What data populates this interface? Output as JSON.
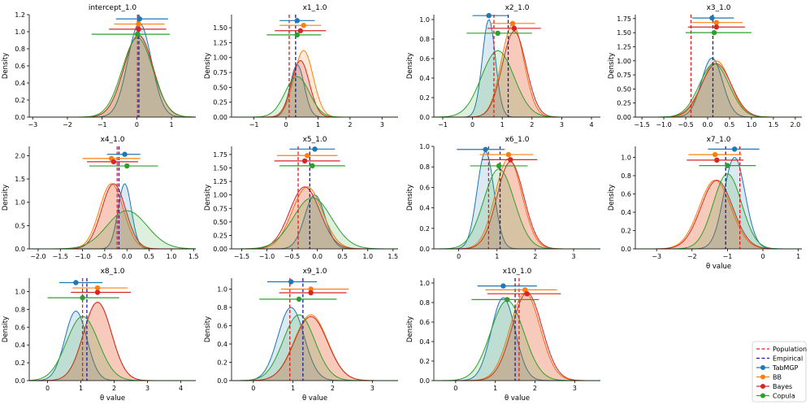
{
  "figure": {
    "ylabel": "Density",
    "xlabel": "θ value",
    "legend": {
      "placement": "bottom-right",
      "items": [
        {
          "label": "Population",
          "kind": "dashed",
          "color": "#e41a1c"
        },
        {
          "label": "Empirical",
          "kind": "dashed",
          "color": "#1a1aa8"
        },
        {
          "label": "TabMGP",
          "kind": "marker",
          "color": "#1f77b4"
        },
        {
          "label": "BB",
          "kind": "marker",
          "color": "#ff7f0e"
        },
        {
          "label": "Bayes",
          "kind": "marker",
          "color": "#d62728"
        },
        {
          "label": "Copula",
          "kind": "marker",
          "color": "#2ca02c"
        }
      ]
    }
  },
  "chart_data": [
    {
      "title": "intercept_1.0",
      "type": "area",
      "xlim": [
        -3.1,
        1.7
      ],
      "ylim": [
        0,
        1.2
      ],
      "xticks": [
        -3,
        -2,
        -1,
        0,
        1
      ],
      "yticks": [
        0,
        0.2,
        0.4,
        0.6,
        0.8,
        1.0,
        1.2
      ],
      "ytick_labels": [
        "0.0",
        "0.2",
        "0.4",
        "0.6",
        "0.8",
        "1.0",
        "1.2"
      ],
      "xlabel": "",
      "population": 0.02,
      "empirical": 0.06,
      "series": [
        {
          "name": "TabMGP",
          "mu": 0.08,
          "sd": 0.34,
          "amp": 1.1,
          "interval": [
            -0.6,
            0.9
          ],
          "my": 1.15
        },
        {
          "name": "BB",
          "mu": 0.05,
          "sd": 0.42,
          "amp": 0.96,
          "interval": [
            -0.65,
            0.8
          ],
          "my": 1.09
        },
        {
          "name": "Bayes",
          "mu": 0.05,
          "sd": 0.42,
          "amp": 0.96,
          "interval": [
            -0.8,
            0.85
          ],
          "my": 1.03
        },
        {
          "name": "Copula",
          "mu": 0.02,
          "sd": 0.44,
          "amp": 0.93,
          "interval": [
            -1.3,
            0.95
          ],
          "my": 0.97
        }
      ]
    },
    {
      "title": "x1_1.0",
      "type": "area",
      "xlim": [
        -1.7,
        3.5
      ],
      "ylim": [
        0,
        1.72
      ],
      "xticks": [
        -1,
        0,
        1,
        2,
        3
      ],
      "yticks": [
        0,
        0.25,
        0.5,
        0.75,
        1.0,
        1.25,
        1.5
      ],
      "ytick_labels": [
        "0.00",
        "0.25",
        "0.50",
        "0.75",
        "1.00",
        "1.25",
        "1.50"
      ],
      "xlabel": "",
      "population": 0.1,
      "empirical": 0.3,
      "series": [
        {
          "name": "TabMGP",
          "mu": 0.35,
          "sd": 0.22,
          "amp": 0.88,
          "interval": [
            -0.2,
            0.9
          ],
          "my": 1.62
        },
        {
          "name": "BB",
          "mu": 0.55,
          "sd": 0.3,
          "amp": 1.12,
          "interval": [
            -0.2,
            1.1
          ],
          "my": 1.54
        },
        {
          "name": "Bayes",
          "mu": 0.45,
          "sd": 0.28,
          "amp": 0.95,
          "interval": [
            -0.35,
            1.25
          ],
          "my": 1.45
        },
        {
          "name": "Copula",
          "mu": 0.35,
          "sd": 0.38,
          "amp": 0.68,
          "interval": [
            -0.6,
            1.1
          ],
          "my": 1.38
        }
      ]
    },
    {
      "title": "x2_1.0",
      "type": "area",
      "xlim": [
        -1.3,
        4.3
      ],
      "ylim": [
        0,
        1.05
      ],
      "xticks": [
        -1,
        0,
        1,
        2,
        3,
        4
      ],
      "yticks": [
        0,
        0.2,
        0.4,
        0.6,
        0.8,
        1.0
      ],
      "ytick_labels": [
        "0.0",
        "0.2",
        "0.4",
        "0.6",
        "0.8",
        "1.0"
      ],
      "xlabel": "",
      "population": 0.72,
      "empirical": 1.2,
      "series": [
        {
          "name": "TabMGP",
          "mu": 0.55,
          "sd": 0.22,
          "amp": 1.0,
          "interval": [
            0.0,
            1.2
          ],
          "my": 1.04
        },
        {
          "name": "BB",
          "mu": 1.35,
          "sd": 0.38,
          "amp": 0.95,
          "interval": [
            0.6,
            2.1
          ],
          "my": 0.96
        },
        {
          "name": "Bayes",
          "mu": 1.4,
          "sd": 0.4,
          "amp": 0.88,
          "interval": [
            0.5,
            2.3
          ],
          "my": 0.91
        },
        {
          "name": "Copula",
          "mu": 0.85,
          "sd": 0.55,
          "amp": 0.68,
          "interval": [
            -0.2,
            2.0
          ],
          "my": 0.86
        }
      ]
    },
    {
      "title": "x3_1.0",
      "type": "area",
      "xlim": [
        -1.65,
        2.15
      ],
      "ylim": [
        0,
        1.82
      ],
      "xticks": [
        -1.5,
        -1.0,
        -0.5,
        0,
        0.5,
        1.0,
        1.5,
        2.0
      ],
      "xtick_labels": [
        "−1.5",
        "−1.0",
        "−0.5",
        "0.0",
        "0.5",
        "1.0",
        "1.5",
        "2.0"
      ],
      "yticks": [
        0,
        0.25,
        0.5,
        0.75,
        1.0,
        1.25,
        1.5,
        1.75
      ],
      "ytick_labels": [
        "0.00",
        "0.25",
        "0.50",
        "0.75",
        "1.00",
        "1.25",
        "1.50",
        "1.75"
      ],
      "xlabel": "",
      "population": -0.38,
      "empirical": 0.12,
      "series": [
        {
          "name": "TabMGP",
          "mu": 0.1,
          "sd": 0.24,
          "amp": 1.05,
          "interval": [
            -0.35,
            0.6
          ],
          "my": 1.76
        },
        {
          "name": "BB",
          "mu": 0.2,
          "sd": 0.32,
          "amp": 1.0,
          "interval": [
            -0.35,
            0.8
          ],
          "my": 1.68
        },
        {
          "name": "Bayes",
          "mu": 0.2,
          "sd": 0.34,
          "amp": 0.95,
          "interval": [
            -0.45,
            0.85
          ],
          "my": 1.6
        },
        {
          "name": "Copula",
          "mu": 0.15,
          "sd": 0.34,
          "amp": 0.95,
          "interval": [
            -0.5,
            1.0
          ],
          "my": 1.5
        }
      ]
    },
    {
      "title": "x4_1.0",
      "type": "area",
      "xlim": [
        -2.2,
        1.55
      ],
      "ylim": [
        0,
        2.2
      ],
      "xticks": [
        -2.0,
        -1.5,
        -1.0,
        -0.5,
        0,
        0.5,
        1.0,
        1.5
      ],
      "xtick_labels": [
        "−2.0",
        "−1.5",
        "−1.0",
        "−0.5",
        "0.0",
        "0.5",
        "1.0",
        "1.5"
      ],
      "yticks": [
        0,
        0.5,
        1.0,
        1.5,
        2.0
      ],
      "ytick_labels": [
        "0.0",
        "0.5",
        "1.0",
        "1.5",
        "2.0"
      ],
      "xlabel": "",
      "population": -0.22,
      "empirical": -0.18,
      "series": [
        {
          "name": "TabMGP",
          "mu": -0.05,
          "sd": 0.15,
          "amp": 1.4,
          "interval": [
            -0.45,
            0.3
          ],
          "my": 2.03
        },
        {
          "name": "BB",
          "mu": -0.35,
          "sd": 0.27,
          "amp": 1.4,
          "interval": [
            -1.0,
            0.3
          ],
          "my": 1.94
        },
        {
          "name": "Bayes",
          "mu": -0.3,
          "sd": 0.27,
          "amp": 1.4,
          "interval": [
            -0.9,
            0.25
          ],
          "my": 1.87
        },
        {
          "name": "Copula",
          "mu": 0.0,
          "sd": 0.45,
          "amp": 0.82,
          "interval": [
            -0.85,
            0.7
          ],
          "my": 1.78
        }
      ]
    },
    {
      "title": "x5_1.0",
      "type": "area",
      "xlim": [
        -1.7,
        1.6
      ],
      "ylim": [
        0,
        1.9
      ],
      "xticks": [
        -1.5,
        -1.0,
        -0.5,
        0,
        0.5,
        1.0,
        1.5
      ],
      "xtick_labels": [
        "−1.5",
        "−1.0",
        "−0.5",
        "0.0",
        "0.5",
        "1.0",
        "1.5"
      ],
      "yticks": [
        0,
        0.25,
        0.5,
        0.75,
        1.0,
        1.25,
        1.5,
        1.75
      ],
      "ytick_labels": [
        "0.00",
        "0.25",
        "0.50",
        "0.75",
        "1.00",
        "1.25",
        "1.50",
        "1.75"
      ],
      "xlabel": "",
      "population": -0.38,
      "empirical": -0.15,
      "series": [
        {
          "name": "TabMGP",
          "mu": -0.05,
          "sd": 0.2,
          "amp": 1.0,
          "interval": [
            -0.55,
            0.35
          ],
          "my": 1.85
        },
        {
          "name": "BB",
          "mu": -0.2,
          "sd": 0.3,
          "amp": 1.15,
          "interval": [
            -0.8,
            0.4
          ],
          "my": 1.73
        },
        {
          "name": "Bayes",
          "mu": -0.25,
          "sd": 0.3,
          "amp": 1.15,
          "interval": [
            -0.85,
            0.45
          ],
          "my": 1.63
        },
        {
          "name": "Copula",
          "mu": -0.1,
          "sd": 0.38,
          "amp": 0.95,
          "interval": [
            -0.75,
            0.55
          ],
          "my": 1.54
        }
      ]
    },
    {
      "title": "x6_1.0",
      "type": "area",
      "xlim": [
        -0.65,
        3.7
      ],
      "ylim": [
        0,
        1.0
      ],
      "xticks": [
        0,
        1,
        2,
        3
      ],
      "yticks": [
        0,
        0.2,
        0.4,
        0.6,
        0.8,
        1.0
      ],
      "ytick_labels": [
        "0.0",
        "0.2",
        "0.4",
        "0.6",
        "0.8",
        "1.0"
      ],
      "xlabel": "",
      "population": 0.78,
      "empirical": 1.08,
      "series": [
        {
          "name": "TabMGP",
          "mu": 0.7,
          "sd": 0.22,
          "amp": 0.95,
          "interval": [
            -0.05,
            1.2
          ],
          "my": 0.97
        },
        {
          "name": "BB",
          "mu": 1.3,
          "sd": 0.35,
          "amp": 0.88,
          "interval": [
            0.55,
            1.95
          ],
          "my": 0.92
        },
        {
          "name": "Bayes",
          "mu": 1.35,
          "sd": 0.35,
          "amp": 0.85,
          "interval": [
            0.6,
            2.05
          ],
          "my": 0.87
        },
        {
          "name": "Copula",
          "mu": 1.05,
          "sd": 0.4,
          "amp": 0.78,
          "interval": [
            0.3,
            1.8
          ],
          "my": 0.81
        }
      ]
    },
    {
      "title": "x7_1.0",
      "type": "area",
      "xlim": [
        -3.6,
        1.1
      ],
      "ylim": [
        0,
        1.12
      ],
      "xticks": [
        -3,
        -2,
        -1,
        0,
        1
      ],
      "yticks": [
        0,
        0.2,
        0.4,
        0.6,
        0.8,
        1.0
      ],
      "ytick_labels": [
        "0.0",
        "0.2",
        "0.4",
        "0.6",
        "0.8",
        "1.0"
      ],
      "xlabel": "θ value",
      "population": -0.65,
      "empirical": -1.05,
      "series": [
        {
          "name": "TabMGP",
          "mu": -0.8,
          "sd": 0.3,
          "amp": 1.0,
          "interval": [
            -1.55,
            -0.1
          ],
          "my": 1.09
        },
        {
          "name": "BB",
          "mu": -1.35,
          "sd": 0.45,
          "amp": 0.75,
          "interval": [
            -2.1,
            -0.6
          ],
          "my": 1.03
        },
        {
          "name": "Bayes",
          "mu": -1.3,
          "sd": 0.45,
          "amp": 0.75,
          "interval": [
            -2.15,
            -0.55
          ],
          "my": 0.97
        },
        {
          "name": "Copula",
          "mu": -1.0,
          "sd": 0.4,
          "amp": 0.82,
          "interval": [
            -1.8,
            -0.2
          ],
          "my": 0.91
        }
      ]
    },
    {
      "title": "x8_1.0",
      "type": "area",
      "xlim": [
        -0.55,
        4.45
      ],
      "ylim": [
        0,
        1.15
      ],
      "xticks": [
        0,
        1,
        2,
        3,
        4
      ],
      "yticks": [
        0,
        0.2,
        0.4,
        0.6,
        0.8,
        1.0
      ],
      "ytick_labels": [
        "0.0",
        "0.2",
        "0.4",
        "0.6",
        "0.8",
        "1.0"
      ],
      "xlabel": "θ value",
      "population": 1.05,
      "empirical": 1.18,
      "series": [
        {
          "name": "TabMGP",
          "mu": 0.85,
          "sd": 0.33,
          "amp": 0.78,
          "interval": [
            0.35,
            1.65
          ],
          "my": 1.1
        },
        {
          "name": "BB",
          "mu": 1.5,
          "sd": 0.42,
          "amp": 0.88,
          "interval": [
            0.75,
            2.4
          ],
          "my": 1.04
        },
        {
          "name": "Bayes",
          "mu": 1.5,
          "sd": 0.42,
          "amp": 0.88,
          "interval": [
            0.7,
            2.5
          ],
          "my": 0.99
        },
        {
          "name": "Copula",
          "mu": 1.05,
          "sd": 0.48,
          "amp": 0.72,
          "interval": [
            0.0,
            2.15
          ],
          "my": 0.93
        }
      ]
    },
    {
      "title": "x9_1.0",
      "type": "area",
      "xlim": [
        -0.55,
        3.65
      ],
      "ylim": [
        0,
        1.12
      ],
      "xticks": [
        0,
        1,
        2,
        3
      ],
      "yticks": [
        0,
        0.2,
        0.4,
        0.6,
        0.8,
        1.0
      ],
      "ytick_labels": [
        "0.0",
        "0.2",
        "0.4",
        "0.6",
        "0.8",
        "1.0"
      ],
      "xlabel": "θ value",
      "population": 0.92,
      "empirical": 1.25,
      "series": [
        {
          "name": "TabMGP",
          "mu": 0.95,
          "sd": 0.33,
          "amp": 0.8,
          "interval": [
            0.35,
            1.6
          ],
          "my": 1.08
        },
        {
          "name": "BB",
          "mu": 1.45,
          "sd": 0.42,
          "amp": 0.72,
          "interval": [
            0.7,
            2.4
          ],
          "my": 1.0
        },
        {
          "name": "Bayes",
          "mu": 1.45,
          "sd": 0.42,
          "amp": 0.7,
          "interval": [
            0.65,
            2.35
          ],
          "my": 0.96
        },
        {
          "name": "Copula",
          "mu": 1.15,
          "sd": 0.4,
          "amp": 0.72,
          "interval": [
            0.15,
            2.1
          ],
          "my": 0.89
        }
      ]
    },
    {
      "title": "x10_1.0",
      "type": "area",
      "xlim": [
        -0.55,
        3.65
      ],
      "ylim": [
        0,
        1.05
      ],
      "xticks": [
        0,
        1,
        2,
        3
      ],
      "yticks": [
        0,
        0.2,
        0.4,
        0.6,
        0.8,
        1.0
      ],
      "ytick_labels": [
        "0.0",
        "0.2",
        "0.4",
        "0.6",
        "0.8",
        "1.0"
      ],
      "xlabel": "θ value",
      "population": 1.6,
      "empirical": 1.5,
      "series": [
        {
          "name": "TabMGP",
          "mu": 1.2,
          "sd": 0.3,
          "amp": 0.85,
          "interval": [
            0.55,
            2.05
          ],
          "my": 0.97
        },
        {
          "name": "BB",
          "mu": 1.75,
          "sd": 0.38,
          "amp": 0.9,
          "interval": [
            0.75,
            2.55
          ],
          "my": 0.93
        },
        {
          "name": "Bayes",
          "mu": 1.8,
          "sd": 0.38,
          "amp": 0.9,
          "interval": [
            0.8,
            2.65
          ],
          "my": 0.89
        },
        {
          "name": "Copula",
          "mu": 1.3,
          "sd": 0.42,
          "amp": 0.82,
          "interval": [
            0.4,
            2.1
          ],
          "my": 0.83
        }
      ]
    }
  ]
}
